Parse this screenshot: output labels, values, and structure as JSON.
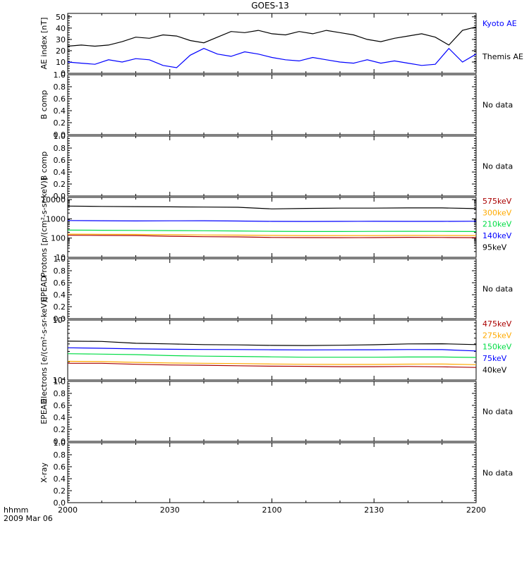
{
  "title": "GOES-13",
  "time_label": "hhmm",
  "date_label": "2009 Mar 06",
  "x_ticks": [
    "2000",
    "2030",
    "2100",
    "2130",
    "2200"
  ],
  "no_data_text": "No data",
  "colors": {
    "black": "#000000",
    "blue": "#0000ff",
    "green": "#00dd44",
    "orange": "#ffaa00",
    "darkred": "#aa0000"
  },
  "chart_data": [
    {
      "type": "line",
      "ylabel": "AE index [nT]",
      "yticks": [
        "0",
        "10",
        "20",
        "30",
        "40",
        "50"
      ],
      "ylim": [
        0,
        53
      ],
      "x": [
        "2000",
        "2004",
        "2008",
        "2012",
        "2016",
        "2020",
        "2024",
        "2028",
        "2032",
        "2036",
        "2040",
        "2044",
        "2048",
        "2052",
        "2056",
        "2100",
        "2104",
        "2108",
        "2112",
        "2116",
        "2120",
        "2124",
        "2128",
        "2132",
        "2136",
        "2140",
        "2144",
        "2148",
        "2152",
        "2156",
        "2200"
      ],
      "series": [
        {
          "name": "Kyoto AE",
          "color": "#0000ff",
          "values": [
            10,
            9,
            8,
            12,
            10,
            13,
            12,
            7,
            5,
            16,
            22,
            17,
            15,
            19,
            17,
            14,
            12,
            11,
            14,
            12,
            10,
            9,
            12,
            9,
            11,
            9,
            7,
            8,
            22,
            10,
            17
          ]
        },
        {
          "name": "Themis AE",
          "color": "#000000",
          "values": [
            24,
            25,
            24,
            25,
            28,
            32,
            31,
            34,
            33,
            29,
            27,
            32,
            37,
            36,
            38,
            35,
            34,
            37,
            35,
            38,
            36,
            34,
            30,
            28,
            31,
            33,
            35,
            32,
            25,
            38,
            41
          ]
        }
      ],
      "legend": [
        "Kyoto AE",
        "Themis AE"
      ]
    },
    {
      "type": "line",
      "ylabel": "B comp",
      "yticks": [
        "0.0",
        "0.2",
        "0.4",
        "0.6",
        "0.8",
        "1.0"
      ],
      "ylim": [
        0,
        1
      ],
      "series": [],
      "note": "No data"
    },
    {
      "type": "line",
      "ylabel": "B comp",
      "yticks": [
        "0.0",
        "0.2",
        "0.4",
        "0.6",
        "0.8",
        "1.0"
      ],
      "ylim": [
        0,
        1
      ],
      "series": [],
      "note": "No data"
    },
    {
      "type": "line",
      "ylabel": "Protons [p/(cm²-s-sr-keV)]",
      "yscale": "log",
      "yticks": [
        "10",
        "100",
        "1000",
        "10000"
      ],
      "ylim": [
        10,
        13000
      ],
      "x": [
        "2000",
        "2010",
        "2020",
        "2030",
        "2040",
        "2050",
        "2100",
        "2110",
        "2120",
        "2130",
        "2140",
        "2150",
        "2200"
      ],
      "series": [
        {
          "name": "575keV",
          "color": "#aa0000",
          "values": [
            140,
            138,
            135,
            125,
            118,
            115,
            108,
            106,
            105,
            106,
            110,
            108,
            105
          ]
        },
        {
          "name": "300keV",
          "color": "#ffaa00",
          "values": [
            160,
            158,
            155,
            150,
            145,
            142,
            138,
            136,
            135,
            136,
            138,
            137,
            135
          ]
        },
        {
          "name": "210keV",
          "color": "#00dd44",
          "values": [
            260,
            255,
            250,
            245,
            240,
            235,
            225,
            220,
            220,
            222,
            225,
            222,
            220
          ]
        },
        {
          "name": "140keV",
          "color": "#0000ff",
          "values": [
            820,
            800,
            780,
            790,
            800,
            770,
            740,
            735,
            740,
            745,
            740,
            740,
            750
          ]
        },
        {
          "name": "95keV",
          "color": "#000000",
          "values": [
            4600,
            4400,
            4300,
            4200,
            4100,
            4000,
            3300,
            3500,
            3600,
            3600,
            3700,
            3700,
            3400
          ]
        }
      ],
      "legend": [
        "575keV",
        "300keV",
        "210keV",
        "140keV",
        "95keV"
      ]
    },
    {
      "type": "line",
      "ylabel": "EPEAD",
      "yticks": [
        "0.0",
        "0.2",
        "0.4",
        "0.6",
        "0.8",
        "1.0"
      ],
      "ylim": [
        0,
        1
      ],
      "series": [],
      "note": "No data"
    },
    {
      "type": "line",
      "ylabel": "Electrons [e/(cm²-s-sr-keV)]",
      "yscale": "log",
      "yticks": [
        "10⁴",
        "10⁵"
      ],
      "ylim": [
        10000,
        100000
      ],
      "x": [
        "2000",
        "2010",
        "2020",
        "2030",
        "2040",
        "2050",
        "2100",
        "2110",
        "2120",
        "2130",
        "2140",
        "2150",
        "2200"
      ],
      "series": [
        {
          "name": "475keV",
          "color": "#aa0000",
          "values": [
            19000,
            19000,
            18300,
            17800,
            17600,
            17300,
            17000,
            16900,
            16700,
            16700,
            16800,
            16600,
            16200
          ]
        },
        {
          "name": "275keV",
          "color": "#ffaa00",
          "values": [
            20500,
            20300,
            19700,
            19200,
            19000,
            18800,
            18500,
            18300,
            18200,
            18200,
            18400,
            18500,
            18000
          ]
        },
        {
          "name": "150keV",
          "color": "#00dd44",
          "values": [
            27500,
            27000,
            26500,
            25500,
            25000,
            24700,
            24300,
            24000,
            24000,
            24000,
            24200,
            24200,
            23800
          ]
        },
        {
          "name": "75keV",
          "color": "#0000ff",
          "values": [
            34500,
            33800,
            33000,
            32600,
            32300,
            32200,
            32000,
            31800,
            31900,
            32000,
            32200,
            32100,
            30500
          ]
        },
        {
          "name": "40keV",
          "color": "#000000",
          "values": [
            44500,
            44000,
            41000,
            40000,
            39000,
            38500,
            37800,
            37600,
            38000,
            38700,
            40000,
            40200,
            39000
          ]
        }
      ],
      "legend": [
        "475keV",
        "275keV",
        "150keV",
        "75keV",
        "40keV"
      ]
    },
    {
      "type": "line",
      "ylabel": "EPEAD",
      "yticks": [
        "0.0",
        "0.2",
        "0.4",
        "0.6",
        "0.8",
        "1.0"
      ],
      "ylim": [
        0,
        1
      ],
      "series": [],
      "note": "No data"
    },
    {
      "type": "line",
      "ylabel": "X-ray",
      "yticks": [
        "0.0",
        "0.2",
        "0.4",
        "0.6",
        "0.8",
        "1.0"
      ],
      "ylim": [
        0,
        1
      ],
      "series": [],
      "note": "No data"
    }
  ]
}
